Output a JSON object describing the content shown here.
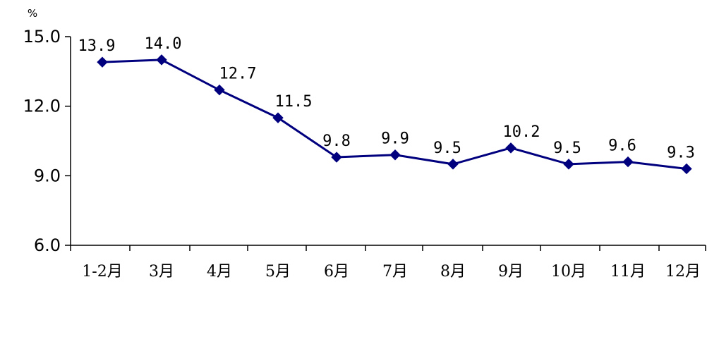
{
  "chart_data": {
    "type": "line",
    "title": "",
    "xlabel": "",
    "ylabel": "%",
    "ylim": [
      6.0,
      15.0
    ],
    "yticks": [
      "6.0",
      "9.0",
      "12.0",
      "15.0"
    ],
    "grid": false,
    "categories": [
      "1-2月",
      "3月",
      "4月",
      "5月",
      "6月",
      "7月",
      "8月",
      "9月",
      "10月",
      "11月",
      "12月"
    ],
    "series": [
      {
        "color": "#00007f",
        "marker": "diamond",
        "values": [
          13.9,
          14.0,
          12.7,
          11.5,
          9.8,
          9.9,
          9.5,
          10.2,
          9.5,
          9.6,
          9.3
        ],
        "labels": [
          "13.9",
          "14.0",
          "12.7",
          "11.5",
          "9.8",
          "9.9",
          "9.5",
          "10.2",
          "9.5",
          "9.6",
          "9.3"
        ]
      }
    ]
  }
}
